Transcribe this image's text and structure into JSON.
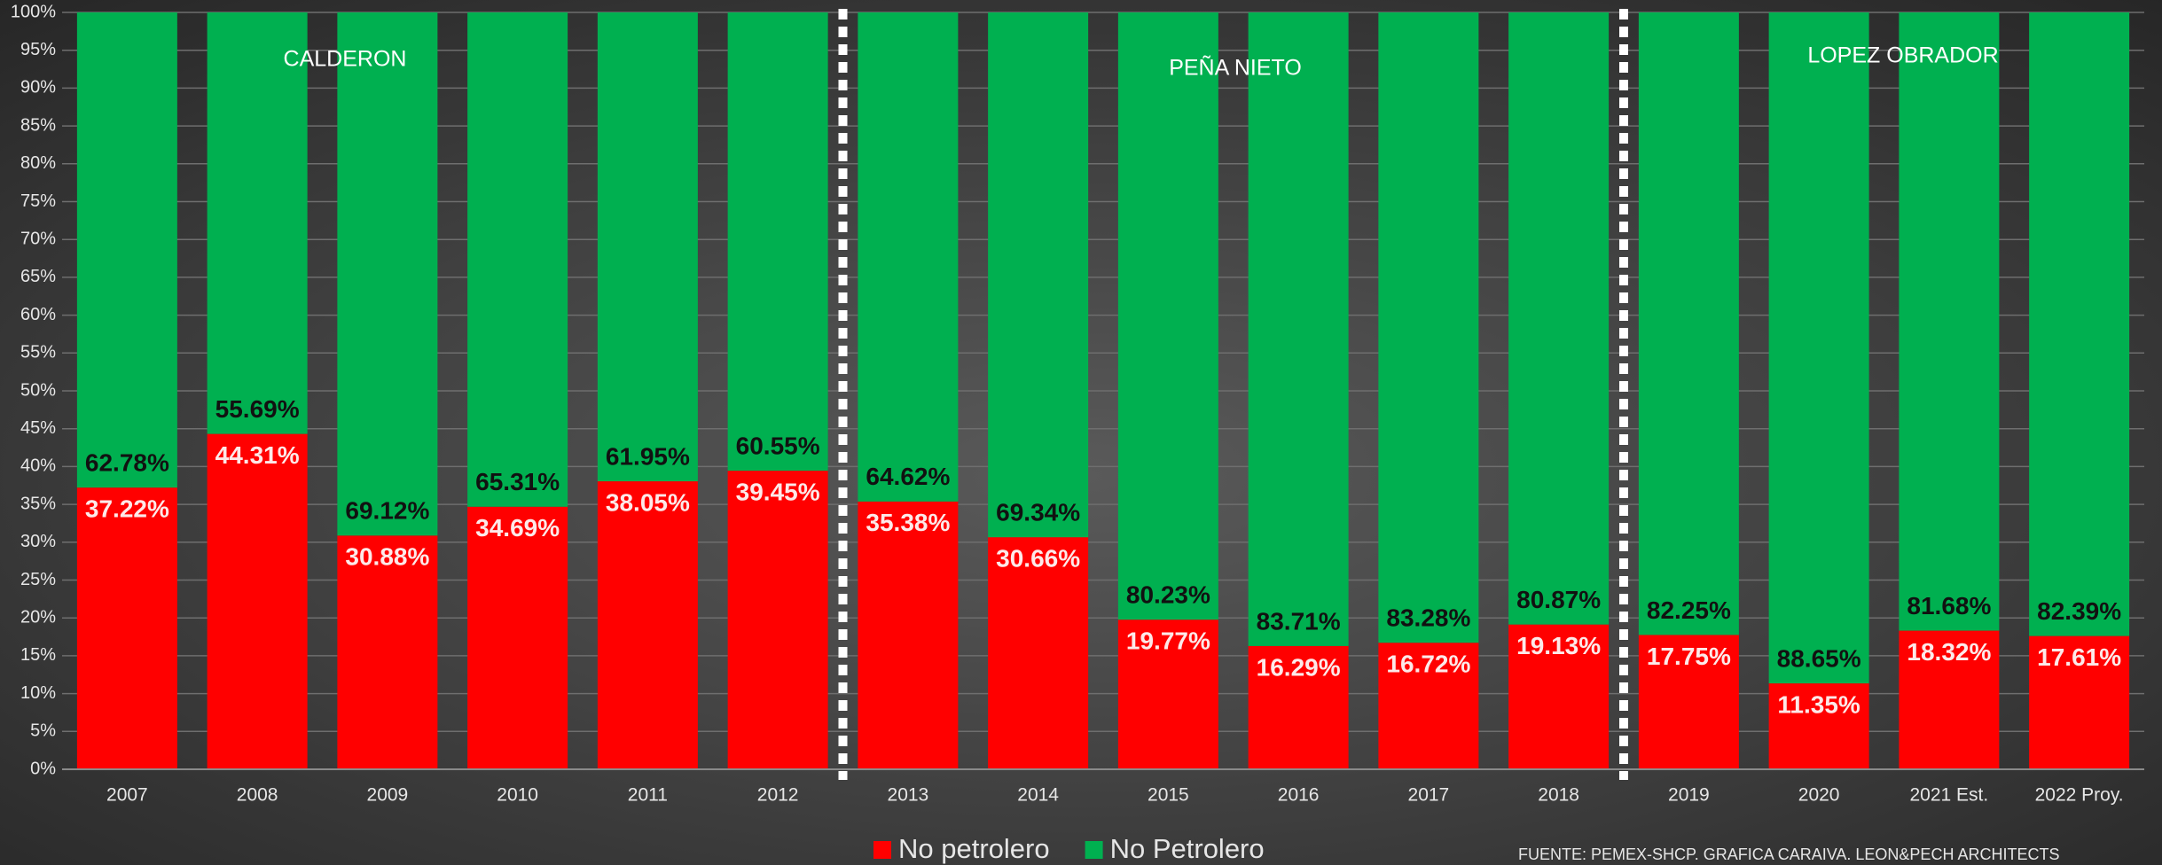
{
  "chart_data": {
    "type": "stacked_bar",
    "categories": [
      "2007",
      "2008",
      "2009",
      "2010",
      "2011",
      "2012",
      "2013",
      "2014",
      "2015",
      "2016",
      "2017",
      "2018",
      "2019",
      "2020",
      "2021 Est.",
      "2022 Proy."
    ],
    "series": [
      {
        "name": "No petrolero",
        "color": "#ff0000",
        "values": [
          37.22,
          44.31,
          30.88,
          34.69,
          38.05,
          39.45,
          35.38,
          30.66,
          19.77,
          16.29,
          16.72,
          19.13,
          17.75,
          11.35,
          18.32,
          17.61
        ],
        "value_labels": [
          "37.22%",
          "44.31%",
          "30.88%",
          "34.69%",
          "38.05%",
          "39.45%",
          "35.38%",
          "30.66%",
          "19.77%",
          "16.29%",
          "16.72%",
          "19.13%",
          "17.75%",
          "11.35%",
          "18.32%",
          "17.61%"
        ]
      },
      {
        "name": "No Petrolero",
        "color": "#00b050",
        "values": [
          62.78,
          55.69,
          69.12,
          65.31,
          61.95,
          60.55,
          64.62,
          69.34,
          80.23,
          83.71,
          83.28,
          80.87,
          82.25,
          88.65,
          81.68,
          82.39
        ],
        "value_labels": [
          "62.78%",
          "55.69%",
          "69.12%",
          "65.31%",
          "61.95%",
          "60.55%",
          "64.62%",
          "69.34%",
          "80.23%",
          "83.71%",
          "83.28%",
          "80.87%",
          "82.25%",
          "88.65%",
          "81.68%",
          "82.39%"
        ]
      }
    ],
    "ylim": [
      0,
      100
    ],
    "yticks": [
      {
        "value": 0,
        "label": "0%"
      },
      {
        "value": 5,
        "label": "5%"
      },
      {
        "value": 10,
        "label": "10%"
      },
      {
        "value": 15,
        "label": "15%"
      },
      {
        "value": 20,
        "label": "20%"
      },
      {
        "value": 25,
        "label": "25%"
      },
      {
        "value": 30,
        "label": "30%"
      },
      {
        "value": 35,
        "label": "35%"
      },
      {
        "value": 40,
        "label": "40%"
      },
      {
        "value": 45,
        "label": "45%"
      },
      {
        "value": 50,
        "label": "50%"
      },
      {
        "value": 55,
        "label": "55%"
      },
      {
        "value": 60,
        "label": "60%"
      },
      {
        "value": 65,
        "label": "65%"
      },
      {
        "value": 70,
        "label": "70%"
      },
      {
        "value": 75,
        "label": "75%"
      },
      {
        "value": 80,
        "label": "80%"
      },
      {
        "value": 85,
        "label": "85%"
      },
      {
        "value": 90,
        "label": "90%"
      },
      {
        "value": 95,
        "label": "95%"
      },
      {
        "value": 100,
        "label": "100%"
      }
    ],
    "grid": true,
    "legend": "bottom",
    "annotations": [
      "CALDERON",
      "PEÑA NIETO",
      "LOPEZ OBRADOR"
    ],
    "source": "FUENTE: PEMEX-SHCP. GRAFICA CARAIVA. LEON&PECH ARCHITECTS"
  }
}
